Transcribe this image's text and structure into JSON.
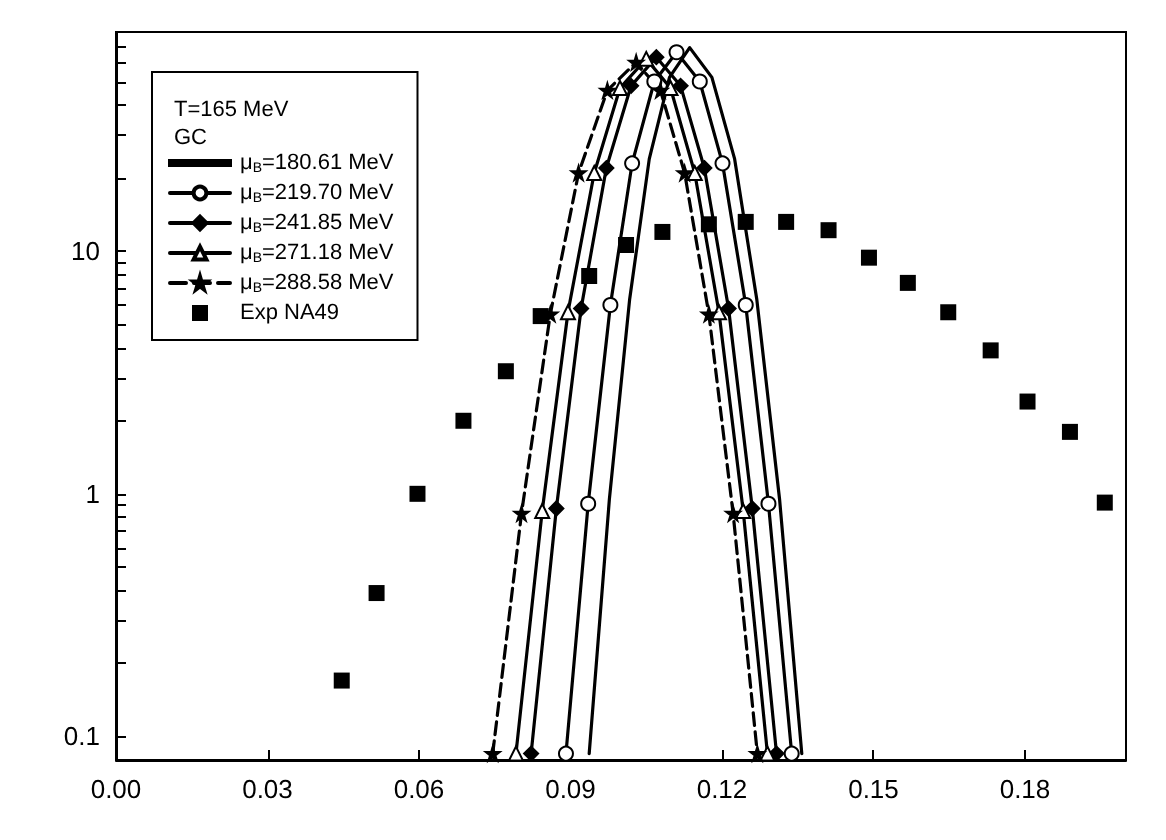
{
  "chart_data": {
    "type": "line",
    "legend_title": "T=165 MeV\nGC",
    "legend": "top left",
    "grid": false,
    "log": "y",
    "xlim": [
      0,
      0.2
    ],
    "ylim": [
      0.08,
      80
    ],
    "xticks": [
      {
        "value": 0,
        "label": "0.00"
      },
      {
        "value": 0.03,
        "label": "0.03"
      },
      {
        "value": 0.06,
        "label": "0.06"
      },
      {
        "value": 0.09,
        "label": "0.09"
      },
      {
        "value": 0.12,
        "label": "0.12"
      },
      {
        "value": 0.15,
        "label": "0.15"
      },
      {
        "value": 0.18,
        "label": "0.18"
      }
    ],
    "yticks": [
      0.1,
      {
        "value": 0.2,
        "label": null
      },
      {
        "value": 0.3,
        "label": null
      },
      {
        "value": 0.4,
        "label": null
      },
      {
        "value": 0.5,
        "label": null
      },
      {
        "value": 0.6,
        "label": null
      },
      {
        "value": 0.7,
        "label": null
      },
      {
        "value": 0.8,
        "label": null
      },
      {
        "value": 0.9,
        "label": null
      },
      1,
      {
        "value": 2,
        "label": null
      },
      {
        "value": 3,
        "label": null
      },
      {
        "value": 4,
        "label": null
      },
      {
        "value": 5,
        "label": null
      },
      {
        "value": 6,
        "label": null
      },
      {
        "value": 7,
        "label": null
      },
      {
        "value": 8,
        "label": null
      },
      {
        "value": 9,
        "label": null
      },
      10,
      {
        "value": 20,
        "label": null
      },
      {
        "value": 30,
        "label": null
      },
      {
        "value": 40,
        "label": null
      },
      {
        "value": 50,
        "label": null
      },
      {
        "value": 60,
        "label": null
      },
      {
        "value": 70,
        "label": null
      }
    ],
    "series": [
      {
        "name": "μ$_{B}$=180.61 MeV",
        "color": "#000000",
        "marker": "none",
        "line_style": "solid",
        "x": [
          0.0937,
          0.0977,
          0.1017,
          0.1056,
          0.1096,
          0.1136,
          0.118,
          0.1225,
          0.1269,
          0.1314,
          0.1358
        ],
        "values": [
          0.085,
          0.95,
          6.3,
          24,
          52,
          69,
          52,
          24,
          6.3,
          0.95,
          0.085
        ]
      },
      {
        "name": "μ$_{B}$=219.70 MeV",
        "color": "#000000",
        "marker": "circle",
        "line_style": "solid",
        "x": [
          0.0891,
          0.0935,
          0.0979,
          0.1022,
          0.1066,
          0.111,
          0.1156,
          0.1201,
          0.1247,
          0.1292,
          0.1338
        ],
        "values": [
          0.085,
          0.91,
          6.0,
          23,
          50,
          66,
          50,
          23,
          6.0,
          0.91,
          0.085
        ]
      },
      {
        "name": "μ$_{B}$=241.85 MeV",
        "color": "#000000",
        "marker": "diamond",
        "line_style": "solid",
        "x": [
          0.0822,
          0.0872,
          0.0921,
          0.0971,
          0.102,
          0.107,
          0.1118,
          0.1165,
          0.1213,
          0.126,
          0.1308
        ],
        "values": [
          0.085,
          0.87,
          5.8,
          22,
          48,
          63,
          48,
          22,
          5.8,
          0.87,
          0.085
        ]
      },
      {
        "name": "μ$_{B}$=271.18 MeV",
        "color": "#000000",
        "marker": "triangle",
        "line_style": "solid",
        "x": [
          0.0792,
          0.0844,
          0.0895,
          0.0947,
          0.0998,
          0.105,
          0.1098,
          0.1146,
          0.1194,
          0.1242,
          0.129
        ],
        "values": [
          0.085,
          0.85,
          5.6,
          21,
          47,
          62,
          47,
          21,
          5.6,
          0.85,
          0.085
        ]
      },
      {
        "name": "μ$_{B}$=288.58 MeV",
        "color": "#000000",
        "marker": "star",
        "line_style": "dashed",
        "x": [
          0.0746,
          0.0803,
          0.086,
          0.0916,
          0.0973,
          0.103,
          0.1078,
          0.1126,
          0.1174,
          0.1222,
          0.127
        ],
        "values": [
          0.085,
          0.83,
          5.5,
          21,
          46,
          60,
          46,
          21,
          5.5,
          0.83,
          0.085
        ]
      },
      {
        "name": "Exp NA49",
        "type": "scatter",
        "color": "#000000",
        "marker": "square",
        "x": [
          0.0447,
          0.0516,
          0.0597,
          0.0688,
          0.0772,
          0.0841,
          0.0937,
          0.101,
          0.1082,
          0.1174,
          0.1247,
          0.1327,
          0.1411,
          0.1491,
          0.1568,
          0.1648,
          0.1732,
          0.1805,
          0.1889,
          0.1958
        ],
        "values": [
          0.17,
          0.39,
          1.0,
          2.0,
          3.2,
          5.4,
          7.9,
          10.6,
          12,
          12.9,
          13.2,
          13.2,
          12.2,
          9.4,
          7.4,
          5.6,
          3.9,
          2.4,
          1.8,
          0.92
        ]
      }
    ]
  }
}
